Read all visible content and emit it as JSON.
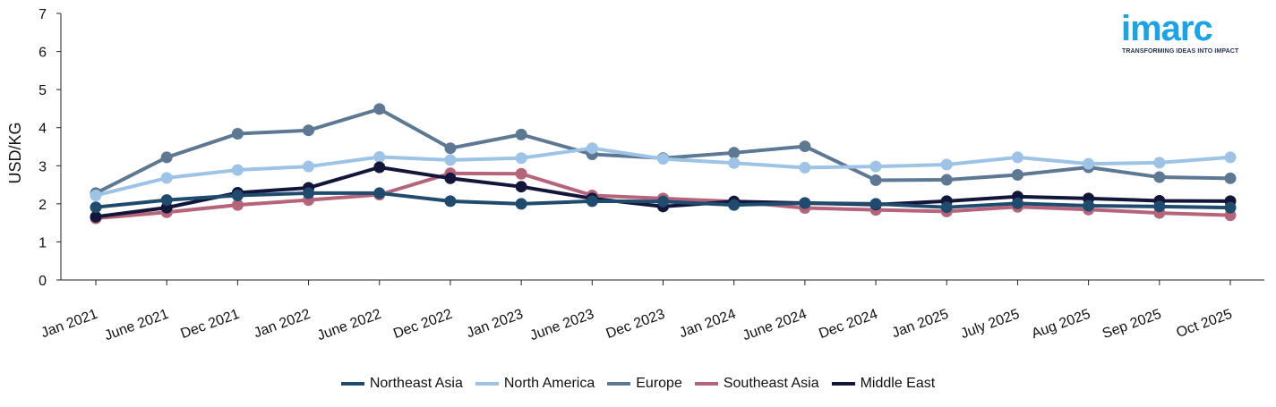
{
  "logo": {
    "word": "imarc",
    "tagline": "TRANSFORMING IDEAS INTO IMPACT"
  },
  "chart_data": {
    "type": "line",
    "title": "",
    "xlabel": "",
    "ylabel": "USD/KG",
    "ylim": [
      0,
      7
    ],
    "yticks": [
      0,
      1,
      2,
      3,
      4,
      5,
      6,
      7
    ],
    "grid": false,
    "legend_position": "bottom",
    "categories": [
      "Jan 2021",
      "June 2021",
      "Dec 2021",
      "Jan 2022",
      "June 2022",
      "Dec 2022",
      "Jan 2023",
      "June 2023",
      "Dec 2023",
      "Jan 2024",
      "June 2024",
      "Dec 2024",
      "Jan 2025",
      "July 2025",
      "Aug 2025",
      "Sep 2025",
      "Oct 2025"
    ],
    "series": [
      {
        "name": "Europe",
        "color": "#5d7892",
        "values": [
          2.28,
          3.22,
          3.84,
          3.93,
          4.49,
          3.46,
          3.82,
          3.3,
          3.2,
          3.34,
          3.51,
          2.62,
          2.63,
          2.76,
          2.96,
          2.7,
          2.67
        ]
      },
      {
        "name": "North America",
        "color": "#9dc3e6",
        "values": [
          2.22,
          2.68,
          2.89,
          2.98,
          3.23,
          3.15,
          3.2,
          3.46,
          3.18,
          3.07,
          2.95,
          2.98,
          3.03,
          3.22,
          3.05,
          3.08,
          3.22
        ]
      },
      {
        "name": "Southeast Asia",
        "color": "#b5647a",
        "values": [
          1.62,
          1.78,
          1.97,
          2.1,
          2.24,
          2.8,
          2.79,
          2.22,
          2.14,
          2.06,
          1.89,
          1.84,
          1.8,
          1.92,
          1.85,
          1.76,
          1.7
        ]
      },
      {
        "name": "Middle East",
        "color": "#12163a",
        "values": [
          1.66,
          1.9,
          2.29,
          2.42,
          2.96,
          2.67,
          2.45,
          2.14,
          1.93,
          2.06,
          2.02,
          1.98,
          2.07,
          2.19,
          2.14,
          2.08,
          2.07
        ]
      },
      {
        "name": "Northeast Asia",
        "color": "#1e4b6e",
        "values": [
          1.91,
          2.1,
          2.22,
          2.28,
          2.28,
          2.07,
          2.0,
          2.07,
          2.06,
          1.97,
          2.02,
          2.0,
          1.91,
          2.01,
          1.95,
          1.93,
          1.9
        ]
      }
    ],
    "legend_order": [
      "Northeast Asia",
      "North America",
      "Europe",
      "Southeast Asia",
      "Middle East"
    ]
  }
}
